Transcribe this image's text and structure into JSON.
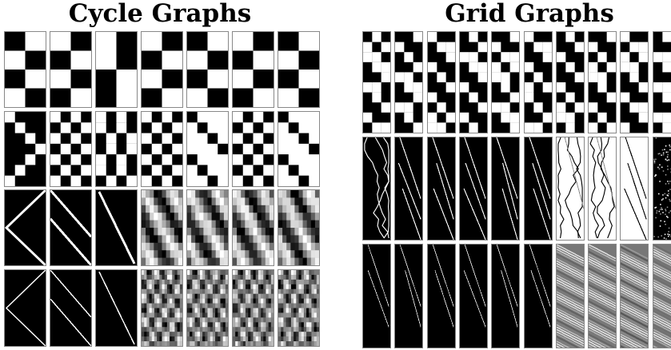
{
  "figure": {
    "left_title": "Cycle Graphs",
    "right_title": "Grid Graphs",
    "cycle_graphs": {
      "rows": [
        {
          "tiles": [
            "checker",
            "checker",
            "halves",
            "checker",
            "checker",
            "checker",
            "checker"
          ]
        },
        {
          "tiles": [
            "chevron-dark",
            "diagonal-dark",
            "diagonal-steep",
            "diagonal-dark",
            "diagonal-light",
            "diagonal-dark",
            "diagonal-light"
          ]
        },
        {
          "tiles": [
            "x-white-lines",
            "diagonal-white-lines",
            "single-white-line",
            "gray-diagonal",
            "gray-diagonal",
            "gray-diagonal",
            "gray-diagonal"
          ]
        },
        {
          "tiles": [
            "x-thin-lines",
            "diagonal-thin-lines",
            "single-thin-line",
            "gray-crosshatch",
            "gray-crosshatch",
            "gray-crosshatch",
            "gray-crosshatch"
          ]
        }
      ]
    },
    "grid_graphs": {
      "rows": [
        {
          "tiles": [
            "block-diagonal",
            "block-diagonal",
            "block-diagonal",
            "block-diagonal",
            "block-diagonal",
            "block-diagonal",
            "block-diagonal",
            "block-diagonal",
            "block-diagonal",
            "block-diagonal"
          ]
        },
        {
          "tiles": [
            "zigzag-dark",
            "sparse-lines-dark",
            "sparse-lines-dark",
            "sparse-lines-dark",
            "sparse-lines-dark",
            "sparse-lines-dark",
            "zigzag-light",
            "zigzag-light",
            "lines-light",
            "noise-dark"
          ]
        },
        {
          "tiles": [
            "thin-lines-dark",
            "thin-lines-dark",
            "thin-lines-dark",
            "thin-lines-dark",
            "thin-lines-dark",
            "thin-lines-dark",
            "gray-wave",
            "gray-wave",
            "gray-wave",
            "gray-wave"
          ]
        }
      ]
    },
    "colors": {
      "background": "#ffffff",
      "black": "#000000",
      "white": "#ffffff",
      "tile_border": "#888888"
    }
  }
}
